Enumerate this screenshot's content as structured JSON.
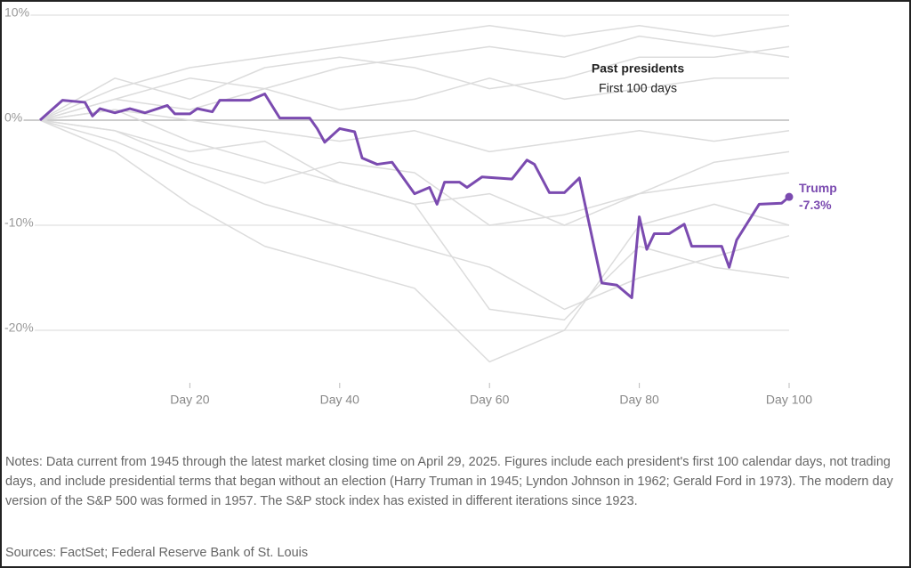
{
  "chart_data": {
    "type": "line",
    "annotations": [
      "Past presidents",
      "First 100 days"
    ],
    "notes": "Notes: Data current from 1945 through the latest market closing time on April 29, 2025. Figures include each president's first 100 calendar days, not trading days, and include presidential terms that began without an election (Harry Truman in 1945; Lyndon Johnson in 1962; Gerald Ford in 1973). The modern day version of the S&P 500 was formed in 1957. The S&P stock index has existed in different iterations since 1923.",
    "sources": "Sources: FactSet; Federal Reserve Bank of St. Louis",
    "xlim": [
      0,
      100
    ],
    "xticks": [
      {
        "value": 20,
        "label": "Day 20"
      },
      {
        "value": 40,
        "label": "Day 40"
      },
      {
        "value": 60,
        "label": "Day 60"
      },
      {
        "value": 80,
        "label": "Day 80"
      },
      {
        "value": 100,
        "label": "Day 100"
      }
    ],
    "ylim": [
      -25,
      10
    ],
    "yticks": [
      {
        "value": 10,
        "label": "10%"
      },
      {
        "value": 0,
        "label": "0%"
      },
      {
        "value": -10,
        "label": "-10%"
      },
      {
        "value": -20,
        "label": "-20%"
      }
    ],
    "grid": true,
    "series": [
      {
        "color": "#dcdcdc",
        "x": [
          0,
          10,
          20,
          30,
          40,
          50,
          60,
          70,
          80,
          90,
          100
        ],
        "values": [
          0,
          3,
          5,
          6,
          7,
          8,
          9,
          8,
          9,
          8,
          9
        ]
      },
      {
        "color": "#dcdcdc",
        "x": [
          0,
          10,
          20,
          30,
          40,
          50,
          60,
          70,
          80,
          90,
          100
        ],
        "values": [
          0,
          2,
          4,
          3,
          5,
          6,
          7,
          6,
          8,
          7,
          6
        ]
      },
      {
        "color": "#dcdcdc",
        "x": [
          0,
          10,
          20,
          30,
          40,
          50,
          60,
          70,
          80,
          90,
          100
        ],
        "values": [
          0,
          -2,
          -5,
          -8,
          -10,
          -12,
          -14,
          -18,
          -15,
          -13,
          -11
        ]
      },
      {
        "color": "#dcdcdc",
        "x": [
          0,
          10,
          20,
          30,
          40,
          50,
          60,
          70,
          80,
          90,
          100
        ],
        "values": [
          0,
          -3,
          -8,
          -12,
          -14,
          -16,
          -23,
          -20,
          -10,
          -8,
          -10
        ]
      },
      {
        "color": "#dcdcdc",
        "x": [
          0,
          10,
          20,
          30,
          40,
          50,
          60,
          70,
          80,
          90,
          100
        ],
        "values": [
          0,
          1,
          -2,
          -4,
          -6,
          -8,
          -7,
          -10,
          -7,
          -6,
          -5
        ]
      },
      {
        "color": "#dcdcdc",
        "x": [
          0,
          10,
          20,
          30,
          40,
          50,
          60,
          70,
          80,
          90,
          100
        ],
        "values": [
          0,
          2,
          1,
          3,
          1,
          2,
          4,
          2,
          3,
          4,
          4
        ]
      },
      {
        "color": "#dcdcdc",
        "x": [
          0,
          10,
          20,
          30,
          40,
          50,
          60,
          70,
          80,
          90,
          100
        ],
        "values": [
          0,
          -1,
          -3,
          -2,
          -6,
          -8,
          -18,
          -19,
          -12,
          -14,
          -15
        ]
      },
      {
        "color": "#dcdcdc",
        "x": [
          0,
          10,
          20,
          30,
          40,
          50,
          60,
          70,
          80,
          90,
          100
        ],
        "values": [
          0,
          1,
          0,
          -1,
          -2,
          -1,
          -3,
          -2,
          -1,
          -2,
          -1
        ]
      },
      {
        "color": "#dcdcdc",
        "x": [
          0,
          10,
          20,
          30,
          40,
          50,
          60,
          70,
          80,
          90,
          100
        ],
        "values": [
          0,
          4,
          2,
          5,
          6,
          5,
          3,
          4,
          6,
          6,
          7
        ]
      },
      {
        "color": "#dcdcdc",
        "x": [
          0,
          10,
          20,
          30,
          40,
          50,
          60,
          70,
          80,
          90,
          100
        ],
        "values": [
          0,
          -1,
          -4,
          -6,
          -4,
          -5,
          -10,
          -9,
          -7,
          -4,
          -3
        ]
      },
      {
        "name": "Trump",
        "color": "#7b4bb0",
        "x": [
          0,
          3,
          6,
          7,
          8,
          10,
          12,
          14,
          17,
          18,
          20,
          21,
          23,
          24,
          28,
          30,
          32,
          36,
          37,
          38,
          40,
          42,
          43,
          45,
          47,
          50,
          52,
          53,
          54,
          56,
          57,
          59,
          63,
          65,
          66,
          68,
          70,
          72,
          75,
          77,
          79,
          80,
          81,
          82,
          84,
          86,
          87,
          91,
          92,
          93,
          96,
          99,
          100
        ],
        "values": [
          0,
          1.9,
          1.7,
          0.4,
          1.1,
          0.7,
          1.1,
          0.7,
          1.4,
          0.6,
          0.6,
          1.1,
          0.8,
          1.9,
          1.9,
          2.5,
          0.2,
          0.2,
          -0.8,
          -2.1,
          -0.8,
          -1.1,
          -3.6,
          -4.2,
          -4.0,
          -7.0,
          -6.4,
          -8.0,
          -5.9,
          -5.9,
          -6.4,
          -5.4,
          -5.6,
          -3.8,
          -4.2,
          -6.9,
          -6.9,
          -5.5,
          -15.5,
          -15.7,
          -16.9,
          -9.2,
          -12.3,
          -10.8,
          -10.8,
          -9.9,
          -12.0,
          -12.0,
          -14.0,
          -11.4,
          -8.0,
          -7.9,
          -7.3
        ],
        "value_labels": [
          null,
          null,
          null,
          null,
          null,
          null,
          null,
          null,
          null,
          null,
          null,
          null,
          null,
          null,
          null,
          null,
          null,
          null,
          null,
          null,
          null,
          null,
          null,
          null,
          null,
          null,
          null,
          null,
          null,
          null,
          null,
          null,
          null,
          null,
          null,
          null,
          null,
          null,
          null,
          null,
          null,
          null,
          null,
          null,
          null,
          null,
          null,
          null,
          null,
          null,
          null,
          null,
          "-7.3%"
        ]
      }
    ]
  }
}
